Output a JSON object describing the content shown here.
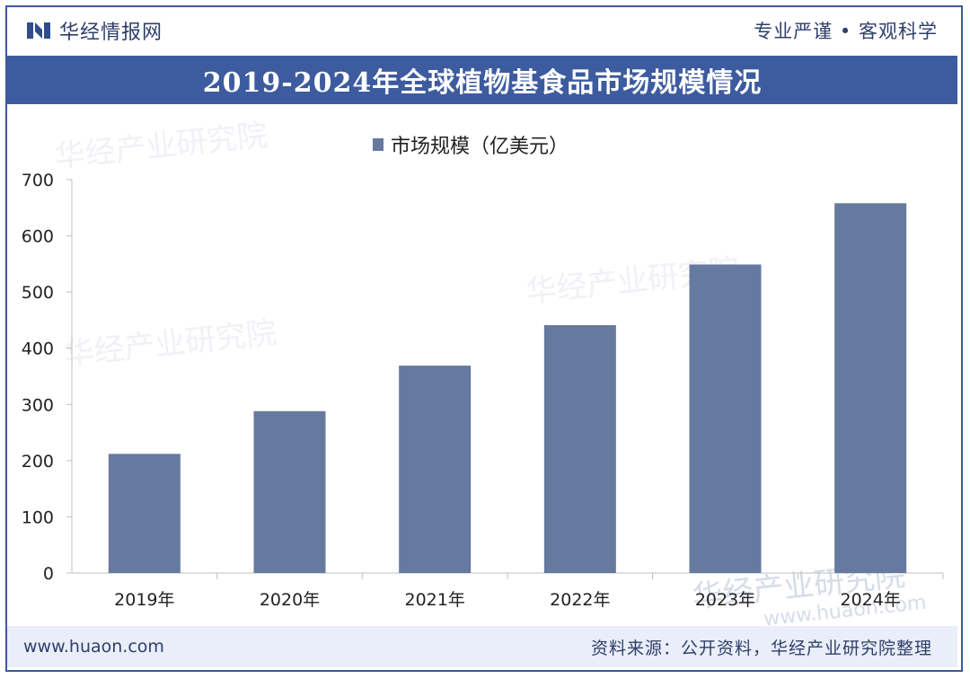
{
  "header": {
    "brand": "华经情报网",
    "motto": "专业严谨 • 客观科学",
    "title": "2019-2024年全球植物基食品市场规模情况"
  },
  "footer": {
    "url": "www.huaon.com",
    "source": "资料来源：公开资料，华经产业研究院整理"
  },
  "watermark": {
    "text": "华经产业研究院",
    "url": "www.huaon.com"
  },
  "colors": {
    "bar": "#66799f",
    "title_bg": "#3d5b9f",
    "footer_bg": "#e9eef8"
  },
  "chart_data": {
    "type": "bar",
    "categories": [
      "2019年",
      "2020年",
      "2021年",
      "2022年",
      "2023年",
      "2024年"
    ],
    "series": [
      {
        "name": "市场规模（亿美元）",
        "values": [
          212,
          288,
          369,
          441,
          549,
          658
        ]
      }
    ],
    "ylim": [
      0,
      700
    ],
    "yticks": [
      0,
      100,
      200,
      300,
      400,
      500,
      600,
      700
    ],
    "grid": false,
    "legend": "top-center"
  }
}
